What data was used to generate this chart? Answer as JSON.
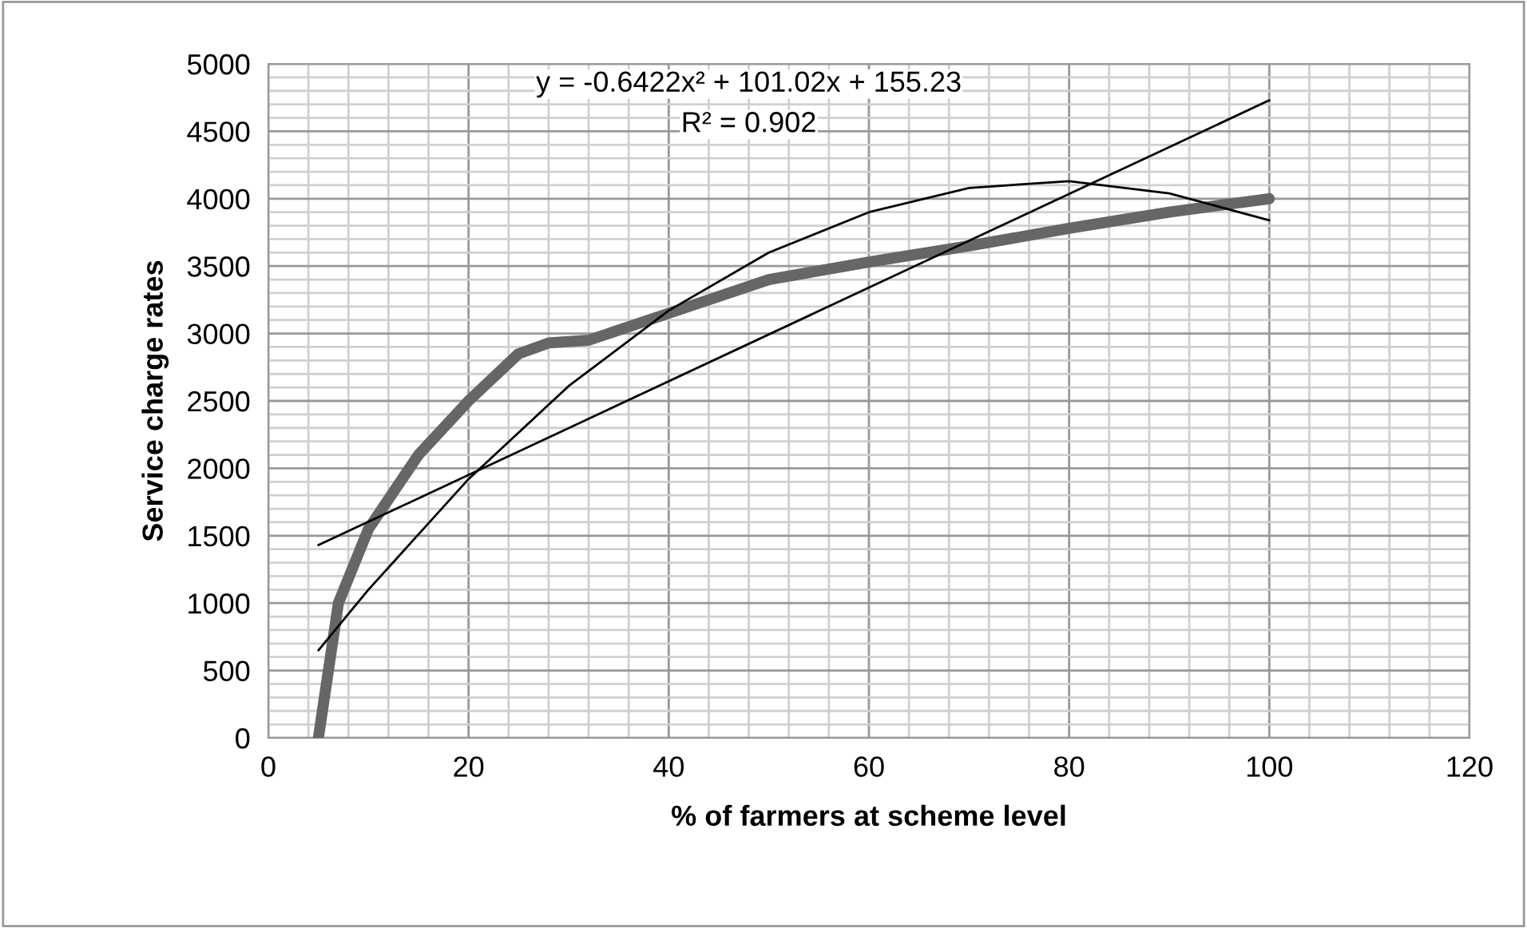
{
  "chart_data": {
    "type": "line",
    "xlabel": "% of farmers at scheme level",
    "ylabel": "Service charge rates",
    "xlim": [
      0,
      120
    ],
    "xticks": [
      0,
      20,
      40,
      60,
      80,
      100,
      120
    ],
    "ylim": [
      0,
      5000
    ],
    "yticks": [
      0,
      500,
      1000,
      1500,
      2000,
      2500,
      3000,
      3500,
      4000,
      4500,
      5000
    ],
    "grid": true,
    "legend": false,
    "marker": "none",
    "line_style": "solid",
    "annotations": [
      "y = -0.6422x² + 101.02x + 155.23",
      "R² = 0.902"
    ],
    "series": [
      {
        "color": "#666666",
        "x": [
          5,
          7,
          10,
          15,
          20,
          25,
          28,
          32,
          40,
          50,
          60,
          70,
          80,
          90,
          100
        ],
        "values": [
          0,
          1000,
          1550,
          2100,
          2500,
          2850,
          2930,
          2950,
          3150,
          3400,
          3530,
          3650,
          3780,
          3900,
          4000
        ]
      },
      {
        "type": "line",
        "color": "#000000",
        "x": [
          5,
          100
        ],
        "values": [
          1430,
          4730
        ]
      },
      {
        "type": "line",
        "color": "#000000",
        "x": [
          5,
          10,
          20,
          30,
          40,
          50,
          60,
          70,
          80,
          90,
          100
        ],
        "values": [
          650,
          1100,
          1920,
          2610,
          3170,
          3600,
          3900,
          4080,
          4130,
          4040,
          3840
        ]
      }
    ]
  }
}
